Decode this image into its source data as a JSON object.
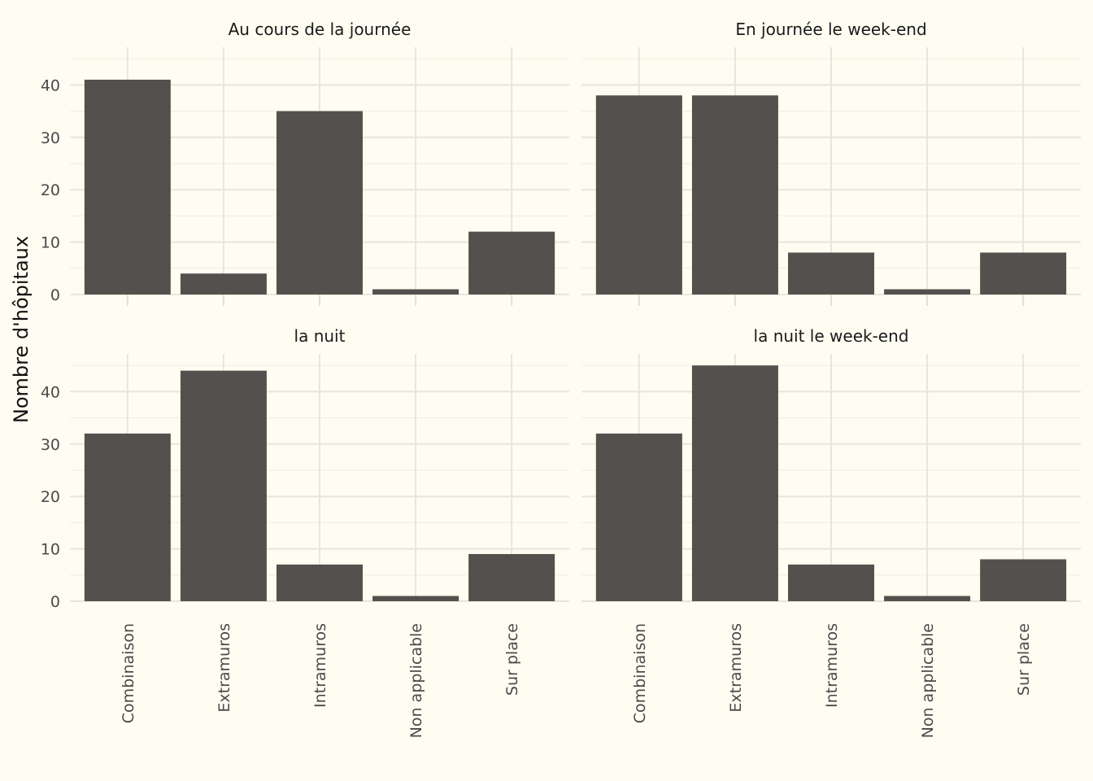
{
  "chart_data": {
    "type": "bar",
    "ylabel": "Nombre d'hôpitaux",
    "xlabel": "",
    "ylim": [
      0,
      47
    ],
    "yticks": [
      0,
      10,
      20,
      30,
      40
    ],
    "grid": true,
    "bar_color": "#52514D",
    "background": "#FFFDF1",
    "categories": [
      "Combinaison",
      "Extramuros",
      "Intramuros",
      "Non applicable",
      "Sur place"
    ],
    "panels": [
      {
        "title": "Au cours de la journée",
        "values": [
          41,
          4,
          35,
          1,
          12
        ]
      },
      {
        "title": "En journée le week-end",
        "values": [
          38,
          38,
          8,
          1,
          8
        ]
      },
      {
        "title": "la nuit",
        "values": [
          32,
          44,
          7,
          1,
          9
        ]
      },
      {
        "title": "la nuit le week-end",
        "values": [
          32,
          45,
          7,
          1,
          8
        ]
      }
    ]
  }
}
